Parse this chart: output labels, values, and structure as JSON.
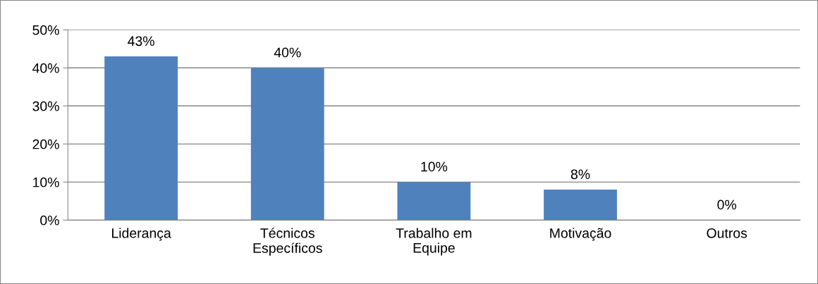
{
  "chart_data": {
    "type": "bar",
    "categories": [
      "Liderança",
      "Técnicos\nEspecíficos",
      "Trabalho em\nEquipe",
      "Motivação",
      "Outros"
    ],
    "values": [
      43,
      40,
      10,
      8,
      0
    ],
    "value_labels": [
      "43%",
      "40%",
      "10%",
      "8%",
      "0%"
    ],
    "color": "#4f81bd",
    "ylim": [
      0,
      50
    ],
    "yticks": [
      {
        "value": 0,
        "label": "0%"
      },
      {
        "value": 10,
        "label": "10%"
      },
      {
        "value": 20,
        "label": "20%"
      },
      {
        "value": 30,
        "label": "30%"
      },
      {
        "value": 40,
        "label": "40%"
      },
      {
        "value": 50,
        "label": "50%"
      }
    ],
    "grid": "y"
  }
}
